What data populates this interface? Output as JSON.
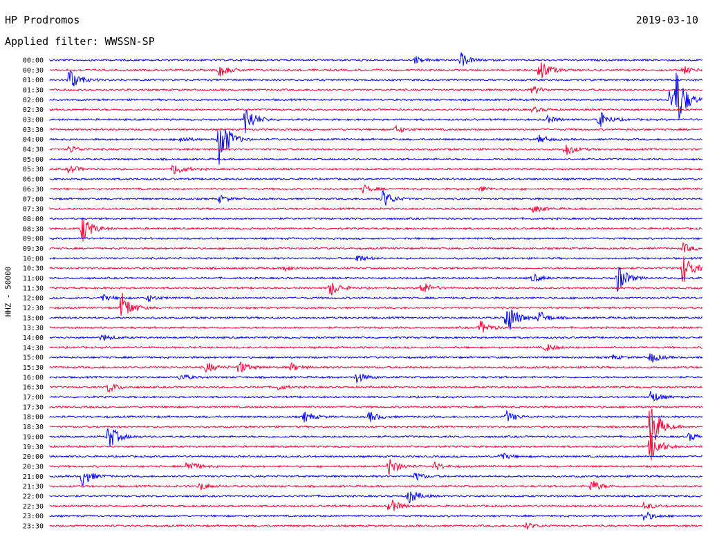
{
  "header": {
    "station": "HP Prodromos",
    "filter": "Applied filter: WWSSN-SP",
    "date": "2019-03-10"
  },
  "axis": {
    "ylabel": "HHZ - 50000"
  },
  "colors": {
    "trace_a": "#0000ff",
    "trace_b": "#ff0033",
    "background": "#ffffff"
  },
  "rows": [
    "00:00",
    "00:30",
    "01:00",
    "01:30",
    "02:00",
    "02:30",
    "03:00",
    "03:30",
    "04:00",
    "04:30",
    "05:00",
    "05:30",
    "06:00",
    "06:30",
    "07:00",
    "07:30",
    "08:00",
    "08:30",
    "09:00",
    "09:30",
    "10:00",
    "10:30",
    "11:00",
    "11:30",
    "12:00",
    "12:30",
    "13:00",
    "13:30",
    "14:00",
    "14:30",
    "15:00",
    "15:30",
    "16:00",
    "16:30",
    "17:00",
    "17:30",
    "18:00",
    "18:30",
    "19:00",
    "19:30",
    "20:00",
    "20:30",
    "21:00",
    "21:30",
    "22:00",
    "22:30",
    "23:00",
    "23:30"
  ]
}
